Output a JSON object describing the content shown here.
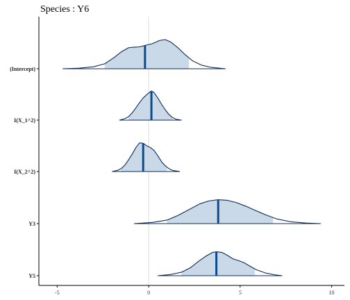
{
  "chart_data": {
    "type": "area",
    "title": "Species : Y6",
    "xlabel": "",
    "ylabel": "",
    "xlim": [
      -6.0,
      10.7
    ],
    "xticks": [
      -5,
      0,
      5,
      10
    ],
    "reference_line": 0,
    "grid": false,
    "colors": {
      "fill": "#c9d9e8",
      "outline": "#0e2a52",
      "median": "#0b4a8f",
      "reference": "#dcdcdc",
      "axis": "#000000"
    },
    "series": [
      {
        "name": "(Intercept)",
        "median": -0.2,
        "interval": [
          -4.7,
          4.2
        ],
        "inner_interval": [
          -2.4,
          2.2
        ],
        "density": [
          [
            -4.7,
            0.0
          ],
          [
            -3.8,
            0.02
          ],
          [
            -3.0,
            0.07
          ],
          [
            -2.4,
            0.17
          ],
          [
            -1.9,
            0.38
          ],
          [
            -1.5,
            0.58
          ],
          [
            -1.1,
            0.72
          ],
          [
            -0.8,
            0.74
          ],
          [
            -0.5,
            0.75
          ],
          [
            -0.2,
            0.8
          ],
          [
            0.2,
            0.86
          ],
          [
            0.6,
            0.97
          ],
          [
            0.9,
            1.0
          ],
          [
            1.2,
            0.92
          ],
          [
            1.6,
            0.72
          ],
          [
            2.0,
            0.48
          ],
          [
            2.4,
            0.27
          ],
          [
            2.9,
            0.12
          ],
          [
            3.4,
            0.05
          ],
          [
            4.2,
            0.0
          ]
        ]
      },
      {
        "name": "I(X_1^2)",
        "median": 0.15,
        "interval": [
          -1.6,
          1.8
        ],
        "inner_interval": [
          -1.1,
          1.3
        ],
        "density": [
          [
            -1.6,
            0.0
          ],
          [
            -1.3,
            0.05
          ],
          [
            -1.1,
            0.12
          ],
          [
            -0.9,
            0.25
          ],
          [
            -0.7,
            0.42
          ],
          [
            -0.5,
            0.6
          ],
          [
            -0.3,
            0.76
          ],
          [
            -0.1,
            0.88
          ],
          [
            0.0,
            0.93
          ],
          [
            0.15,
            1.0
          ],
          [
            0.3,
            0.94
          ],
          [
            0.5,
            0.76
          ],
          [
            0.7,
            0.55
          ],
          [
            0.9,
            0.36
          ],
          [
            1.1,
            0.2
          ],
          [
            1.3,
            0.09
          ],
          [
            1.5,
            0.03
          ],
          [
            1.8,
            0.0
          ]
        ]
      },
      {
        "name": "I(X_2^2)",
        "median": -0.3,
        "interval": [
          -2.0,
          1.7
        ],
        "inner_interval": [
          -1.5,
          1.0
        ],
        "density": [
          [
            -2.0,
            0.0
          ],
          [
            -1.7,
            0.04
          ],
          [
            -1.5,
            0.1
          ],
          [
            -1.3,
            0.22
          ],
          [
            -1.1,
            0.4
          ],
          [
            -0.9,
            0.6
          ],
          [
            -0.7,
            0.82
          ],
          [
            -0.5,
            0.98
          ],
          [
            -0.3,
            0.97
          ],
          [
            -0.1,
            0.88
          ],
          [
            0.1,
            0.82
          ],
          [
            0.3,
            0.72
          ],
          [
            0.5,
            0.54
          ],
          [
            0.7,
            0.34
          ],
          [
            0.9,
            0.2
          ],
          [
            1.1,
            0.1
          ],
          [
            1.3,
            0.04
          ],
          [
            1.7,
            0.0
          ]
        ]
      },
      {
        "name": "Y3",
        "median": 3.8,
        "interval": [
          -0.8,
          9.4
        ],
        "inner_interval": [
          1.0,
          6.8
        ],
        "density": [
          [
            -0.8,
            0.0
          ],
          [
            0.2,
            0.04
          ],
          [
            1.0,
            0.12
          ],
          [
            1.6,
            0.28
          ],
          [
            2.2,
            0.48
          ],
          [
            2.8,
            0.68
          ],
          [
            3.3,
            0.78
          ],
          [
            3.8,
            0.82
          ],
          [
            4.3,
            0.8
          ],
          [
            4.8,
            0.72
          ],
          [
            5.3,
            0.6
          ],
          [
            5.8,
            0.46
          ],
          [
            6.4,
            0.3
          ],
          [
            7.0,
            0.16
          ],
          [
            7.8,
            0.06
          ],
          [
            8.6,
            0.02
          ],
          [
            9.4,
            0.0
          ]
        ]
      },
      {
        "name": "Y5",
        "median": 3.7,
        "interval": [
          0.5,
          7.3
        ],
        "inner_interval": [
          1.8,
          5.8
        ],
        "density": [
          [
            0.5,
            0.0
          ],
          [
            1.2,
            0.04
          ],
          [
            1.8,
            0.12
          ],
          [
            2.3,
            0.28
          ],
          [
            2.7,
            0.48
          ],
          [
            3.1,
            0.66
          ],
          [
            3.5,
            0.8
          ],
          [
            3.7,
            0.82
          ],
          [
            4.0,
            0.8
          ],
          [
            4.3,
            0.7
          ],
          [
            4.6,
            0.58
          ],
          [
            4.9,
            0.52
          ],
          [
            5.2,
            0.45
          ],
          [
            5.5,
            0.34
          ],
          [
            5.9,
            0.2
          ],
          [
            6.4,
            0.09
          ],
          [
            6.9,
            0.03
          ],
          [
            7.3,
            0.0
          ]
        ]
      }
    ]
  }
}
